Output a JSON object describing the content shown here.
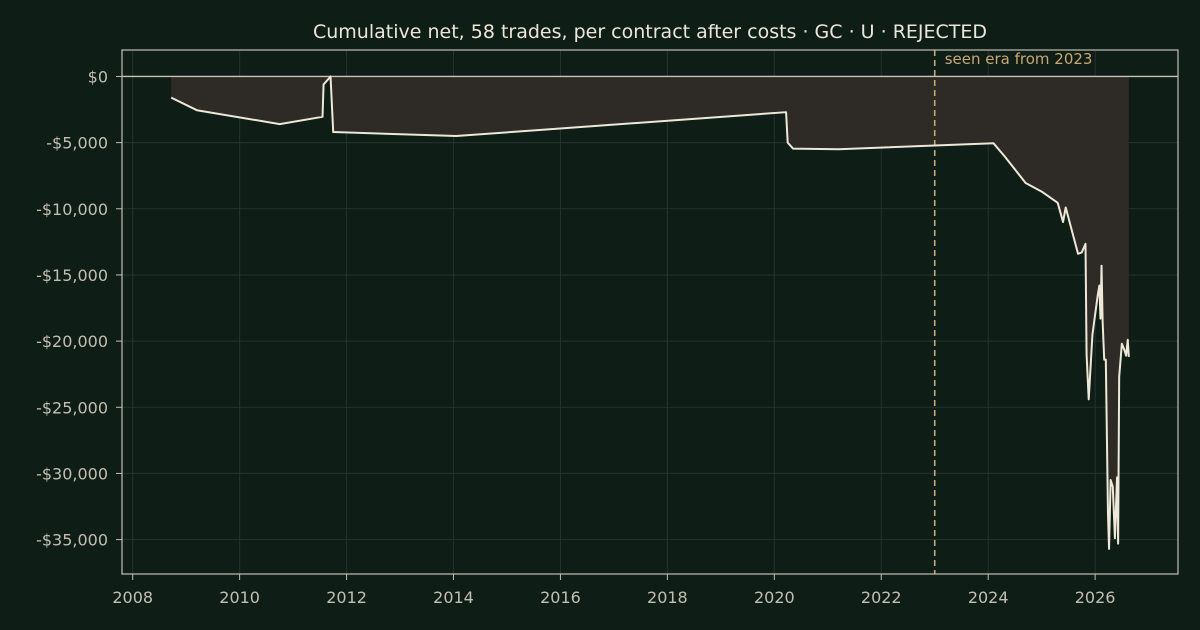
{
  "chart_data": {
    "type": "area",
    "title": "Cumulative net, 58 trades, per contract after costs  ·  GC · U · REJECTED",
    "xlabel": "",
    "ylabel": "",
    "xlim": [
      2007.8,
      2027.55
    ],
    "ylim": [
      -37600,
      2000
    ],
    "x_ticks": [
      2008,
      2010,
      2012,
      2014,
      2016,
      2018,
      2020,
      2022,
      2024,
      2026
    ],
    "x_tick_labels": [
      "2008",
      "2010",
      "2012",
      "2014",
      "2016",
      "2018",
      "2020",
      "2022",
      "2024",
      "2026"
    ],
    "y_ticks": [
      0,
      -5000,
      -10000,
      -15000,
      -20000,
      -25000,
      -30000,
      -35000
    ],
    "y_tick_labels": [
      "$0",
      "-$5,000",
      "-$10,000",
      "-$15,000",
      "-$20,000",
      "-$25,000",
      "-$30,000",
      "-$35,000"
    ],
    "grid": true,
    "zero_line": 0,
    "annotation": {
      "x": 2023.0,
      "text": "seen era from 2023",
      "style": "dashed-vertical"
    },
    "colors": {
      "background": "#0f1d17",
      "line": "#ede8d8",
      "fill": "#2e2a25",
      "grid": "#27332c",
      "axis": "#c3bfb2",
      "annotation": "#c7a774"
    },
    "series": [
      {
        "points": [
          [
            2008.72,
            -1600
          ],
          [
            2009.2,
            -2550
          ],
          [
            2010.75,
            -3600
          ],
          [
            2011.55,
            -3050
          ],
          [
            2011.57,
            -600
          ],
          [
            2011.67,
            -150
          ],
          [
            2011.7,
            0
          ],
          [
            2011.75,
            -4200
          ],
          [
            2014.05,
            -4500
          ],
          [
            2020.22,
            -2700
          ],
          [
            2020.25,
            -5000
          ],
          [
            2020.35,
            -5450
          ],
          [
            2021.2,
            -5500
          ],
          [
            2024.1,
            -5050
          ],
          [
            2024.3,
            -6000
          ],
          [
            2024.7,
            -8050
          ],
          [
            2025.0,
            -8700
          ],
          [
            2025.3,
            -9550
          ],
          [
            2025.4,
            -11000
          ],
          [
            2025.45,
            -9900
          ],
          [
            2025.68,
            -13400
          ],
          [
            2025.75,
            -13300
          ],
          [
            2025.82,
            -12650
          ],
          [
            2025.84,
            -21000
          ],
          [
            2025.88,
            -24400
          ],
          [
            2025.95,
            -19500
          ],
          [
            2026.05,
            -16500
          ],
          [
            2026.08,
            -15800
          ],
          [
            2026.1,
            -18300
          ],
          [
            2026.12,
            -14300
          ],
          [
            2026.14,
            -18500
          ],
          [
            2026.17,
            -21400
          ],
          [
            2026.2,
            -21400
          ],
          [
            2026.24,
            -33000
          ],
          [
            2026.26,
            -35700
          ],
          [
            2026.29,
            -30500
          ],
          [
            2026.33,
            -31000
          ],
          [
            2026.37,
            -34900
          ],
          [
            2026.41,
            -30300
          ],
          [
            2026.43,
            -35300
          ],
          [
            2026.45,
            -22700
          ],
          [
            2026.5,
            -20200
          ],
          [
            2026.55,
            -20700
          ],
          [
            2026.58,
            -21100
          ],
          [
            2026.61,
            -19900
          ],
          [
            2026.63,
            -21200
          ]
        ]
      }
    ]
  }
}
